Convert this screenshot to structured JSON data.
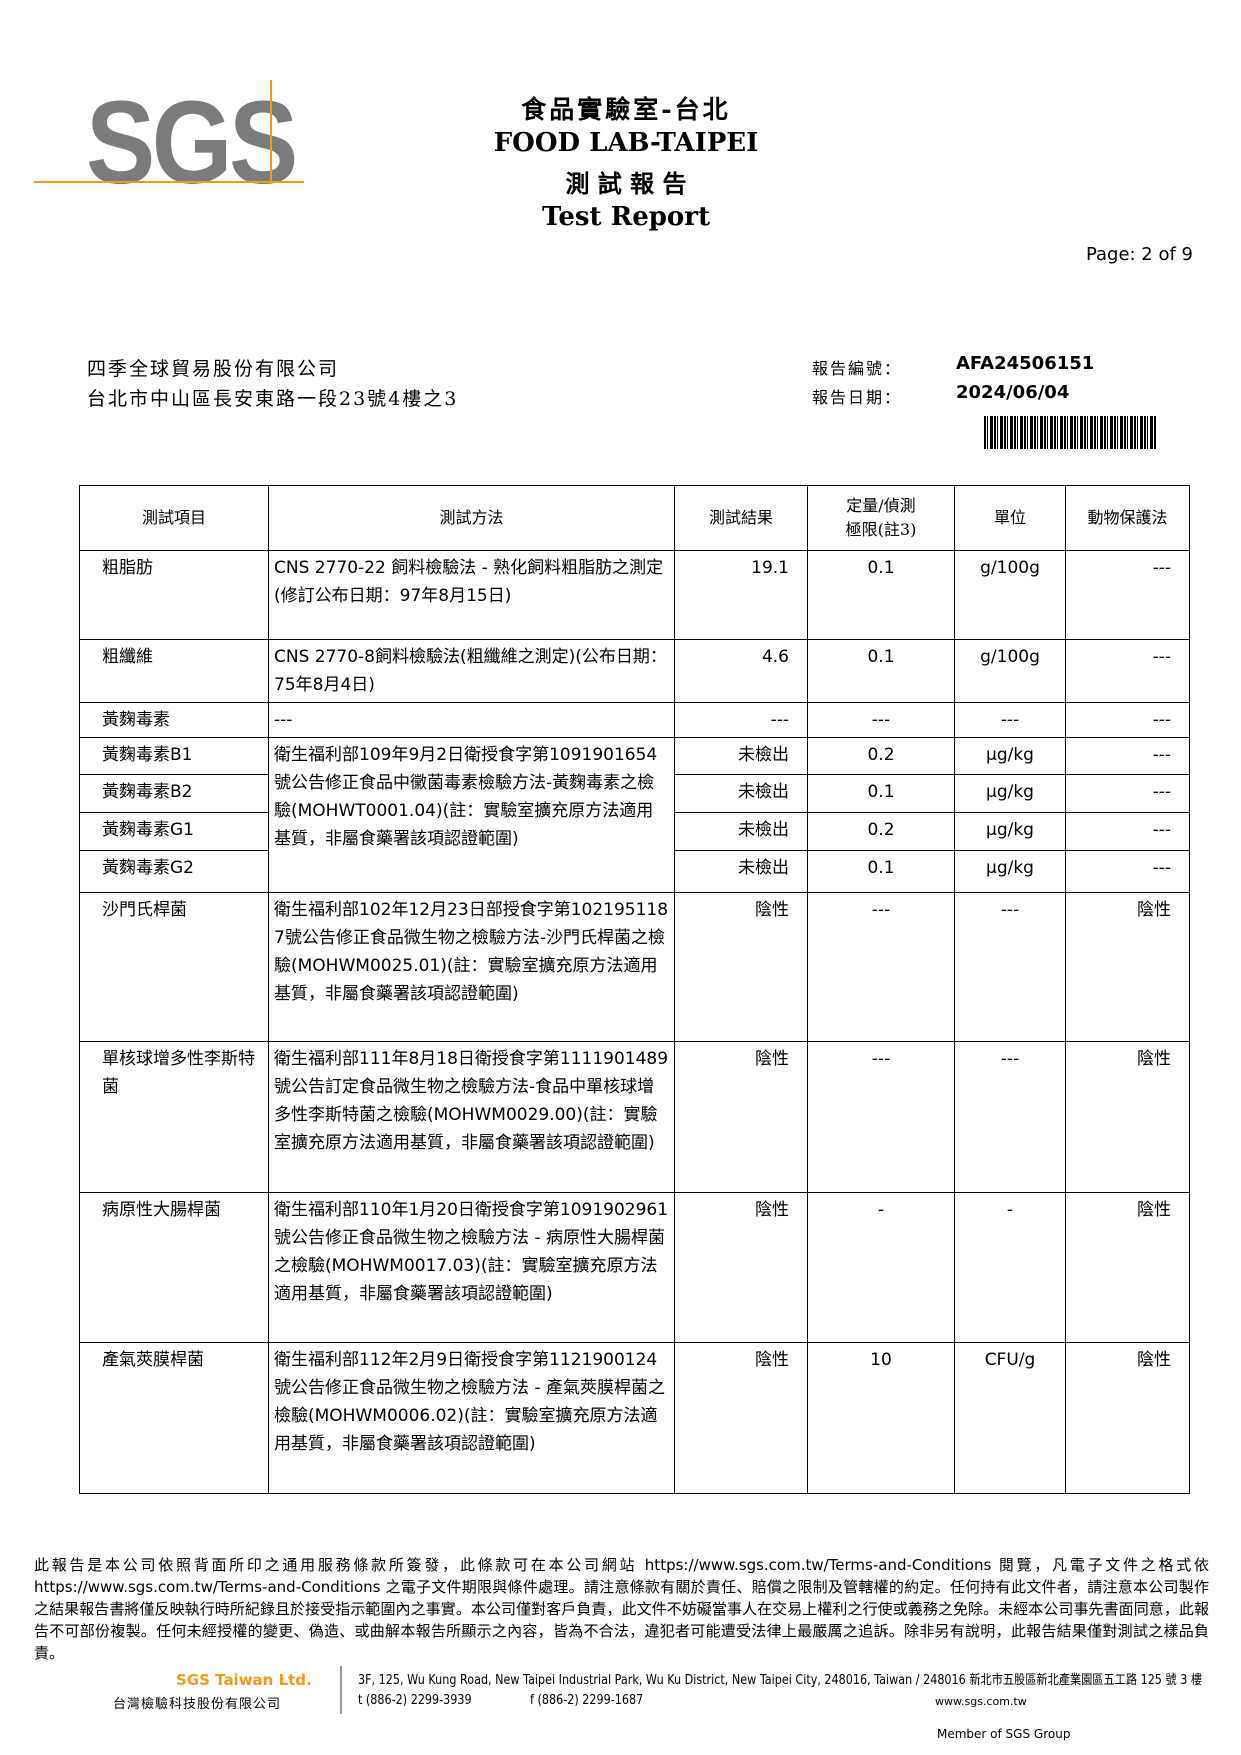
{
  "header": {
    "logo": "SGS",
    "title_zh": "食品實驗室-台北",
    "title_en": "FOOD LAB-TAIPEI",
    "subtitle_zh": "測 試 報 告",
    "subtitle_en": "Test Report",
    "page": "Page: 2 of 9"
  },
  "client": {
    "name": "四季全球貿易股份有限公司",
    "address": "台北市中山區長安東路一段23號4樓之3"
  },
  "report": {
    "number_label": "報告編號：",
    "number": "AFA24506151",
    "date_label": "報告日期：",
    "date": "2024/06/04"
  },
  "table": {
    "header": [
      "測試項目",
      "測試方法",
      "測試結果",
      "定量/偵測極限(註3)",
      "單位",
      "動物保護法"
    ],
    "rows": [
      [
        "粗脂肪",
        "CNS 2770-22 飼料檢驗法 - 熟化飼料粗脂肪之測定(修訂公布日期：97年8月15日)",
        "19.1",
        "0.1",
        "g/100g",
        "---"
      ],
      [
        "粗纖維",
        "CNS 2770-8飼料檢驗法(粗纖維之測定)(公布日期：75年8月4日)",
        "4.6",
        "0.1",
        "g/100g",
        "---"
      ],
      [
        "黃麴毒素",
        "---",
        "---",
        "---",
        "---",
        "---"
      ],
      [
        "黃麴毒素B1",
        "衛生福利部109年9月2日衛授食字第1091901654號公告修正食品中黴菌毒素檢驗方法-黃麴毒素之檢驗(MOHWT0001.04)(註：實驗室擴充原方法適用基質，非屬食藥署該項認證範圍)",
        "未檢出",
        "0.2",
        "μg/kg",
        "---"
      ],
      [
        "黃麴毒素B2",
        "未檢出",
        "0.1",
        "μg/kg",
        "---"
      ],
      [
        "黃麴毒素G1",
        "未檢出",
        "0.2",
        "μg/kg",
        "---"
      ],
      [
        "黃麴毒素G2",
        "未檢出",
        "0.1",
        "μg/kg",
        "---"
      ],
      [
        "沙門氏桿菌",
        "衛生福利部102年12月23日部授食字第1021951187號公告修正食品微生物之檢驗方法-沙門氏桿菌之檢驗(MOHWM0025.01)(註：實驗室擴充原方法適用基質，非屬食藥署該項認證範圍)",
        "陰性",
        "---",
        "---",
        "陰性"
      ],
      [
        "單核球增多性李斯特菌",
        "衛生福利部111年8月18日衛授食字第1111901489號公告訂定食品微生物之檢驗方法-食品中單核球增多性李斯特菌之檢驗(MOHWM0029.00)(註：實驗室擴充原方法適用基質，非屬食藥署該項認證範圍)",
        "陰性",
        "---",
        "---",
        "陰性"
      ],
      [
        "病原性大腸桿菌",
        "衛生福利部110年1月20日衛授食字第1091902961 號公告修正食品微生物之檢驗方法 - 病原性大腸桿菌之檢驗(MOHWM0017.03)(註：實驗室擴充原方法適用基質，非屬食藥署該項認證範圍)",
        "陰性",
        "-",
        "-",
        "陰性"
      ],
      [
        "產氣莢膜桿菌",
        "衛生福利部112年2月9日衛授食字第1121900124號公告修正食品微生物之檢驗方法 - 產氣莢膜桿菌之檢驗(MOHWM0006.02)(註：實驗室擴充原方法適用基質，非屬食藥署該項認證範圍)",
        "陰性",
        "10",
        "CFU/g",
        "陰性"
      ]
    ]
  },
  "footer": {
    "disclaimer": "此報告是本公司依照背面所印之通用服務條款所簽發，此條款可在本公司網站 https://www.sgs.com.tw/Terms-and-Conditions 閱覽，凡電子文件之格式依 https://www.sgs.com.tw/Terms-and-Conditions 之電子文件期限與條件處理。請注意條款有關於責任、賠償之限制及管轄權的約定。任何持有此文件者，請注意本公司製作之結果報告書將僅反映執行時所紀錄且於接受指示範圍內之事實。本公司僅對客戶負責，此文件不妨礙當事人在交易上權利之行使或義務之免除。未經本公司事先書面同意，此報告不可部份複製。任何未經授權的變更、偽造、或曲解本報告所顯示之內容，皆為不合法，違犯者可能遭受法律上最嚴厲之追訴。除非另有說明，此報告結果僅對測試之樣品負責。",
    "company_en": "SGS Taiwan Ltd.",
    "company_zh": "台灣檢驗科技股份有限公司",
    "address": "3F, 125, Wu Kung Road, New Taipei Industrial Park, Wu Ku District, New Taipei City, 248016, Taiwan / 248016 新北市五股區新北產業園區五工路 125 號 3 樓",
    "phone": "t (886-2) 2299-3939",
    "fax": "f (886-2) 2299-1687",
    "website": "www.sgs.com.tw",
    "member": "Member of SGS Group"
  }
}
